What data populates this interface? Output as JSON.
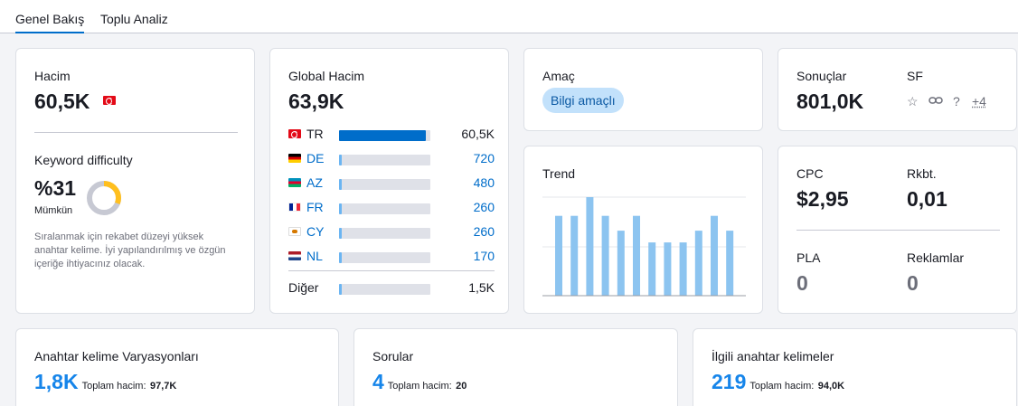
{
  "tabs": {
    "overview": "Genel Bakış",
    "bulk": "Toplu Analiz"
  },
  "volume": {
    "label": "Hacim",
    "value": "60,5K"
  },
  "keyword_difficulty": {
    "label": "Keyword difficulty",
    "value": "%31",
    "level": "Mümkün",
    "percent": 31,
    "description": "Sıralanmak için rekabet düzeyi yüksek anahtar kelime. İyi yapılandırılmış ve özgün içeriğe ihtiyacınız olacak."
  },
  "global_volume": {
    "label": "Global Hacim",
    "value": "63,9K",
    "rows": [
      {
        "code": "TR",
        "value": "60,5K",
        "share": 0.95
      },
      {
        "code": "DE",
        "value": "720",
        "share": 0.02
      },
      {
        "code": "AZ",
        "value": "480",
        "share": 0.02
      },
      {
        "code": "FR",
        "value": "260",
        "share": 0.02
      },
      {
        "code": "CY",
        "value": "260",
        "share": 0.02
      },
      {
        "code": "NL",
        "value": "170",
        "share": 0.02
      }
    ],
    "other_label": "Diğer",
    "other_value": "1,5K",
    "other_share": 0.02
  },
  "intent": {
    "label": "Amaç",
    "chip": "Bilgi amaçlı"
  },
  "trend": {
    "label": "Trend",
    "values": [
      0.81,
      0.81,
      1.0,
      0.81,
      0.66,
      0.81,
      0.54,
      0.54,
      0.54,
      0.66,
      0.81,
      0.66
    ]
  },
  "results": {
    "label": "Sonuçlar",
    "value": "801,0K",
    "sf_label": "SF",
    "sf_more": "+4"
  },
  "cpc": {
    "label": "CPC",
    "value": "$2,95"
  },
  "competition": {
    "label": "Rkbt.",
    "value": "0,01"
  },
  "pla": {
    "label": "PLA",
    "value": "0"
  },
  "ads": {
    "label": "Reklamlar",
    "value": "0"
  },
  "variations": {
    "label": "Anahtar kelime Varyasyonları",
    "value": "1,8K",
    "sub_label": "Toplam hacim:",
    "sub_value": "97,7K"
  },
  "questions": {
    "label": "Sorular",
    "value": "4",
    "sub_label": "Toplam hacim:",
    "sub_value": "20"
  },
  "related": {
    "label": "İlgili anahtar kelimeler",
    "value": "219",
    "sub_label": "Toplam hacim:",
    "sub_value": "94,0K"
  },
  "colors": {
    "accent": "#006dca",
    "accent_light": "#6bb5f2",
    "trend_bar": "#8cc4f0",
    "donut_fill": "#ffbf1e",
    "donut_track": "#c7c9d3",
    "chip_bg": "#c2e1fb"
  }
}
